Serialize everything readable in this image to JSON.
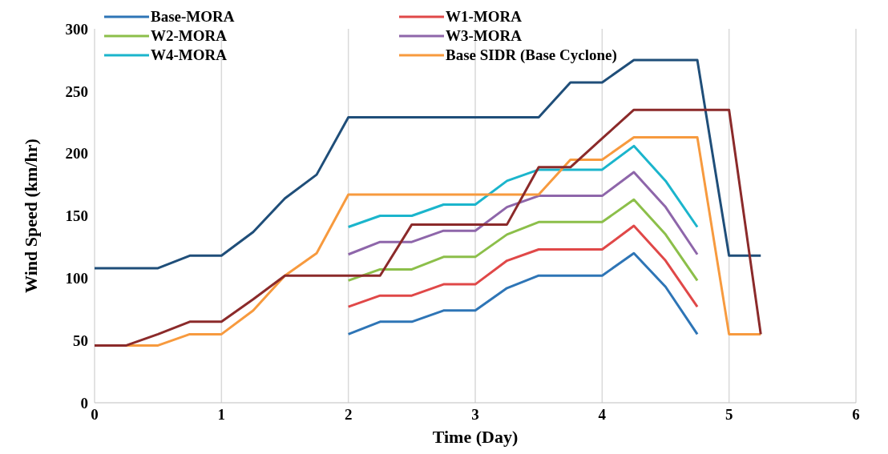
{
  "chart_data": {
    "type": "line",
    "xlabel": "Time (Day)",
    "ylabel": "Wind Speed (km/hr)",
    "xlim": [
      0,
      6
    ],
    "xticks": [
      0,
      1,
      2,
      3,
      4,
      5,
      6
    ],
    "ylim": [
      0,
      300
    ],
    "yticks": [
      0,
      50,
      100,
      150,
      200,
      250,
      300
    ],
    "grid": "x",
    "legend": "top",
    "marker": "none",
    "line_style": "solid",
    "series": [
      {
        "name": "Base-MORA",
        "color": "#2e75b6",
        "x": [
          2,
          2.25,
          2.5,
          2.75,
          3,
          3.25,
          3.5,
          4,
          4.25,
          4.5,
          4.75
        ],
        "values": [
          55,
          65,
          65,
          74,
          74,
          92,
          102,
          102,
          120,
          93,
          55
        ]
      },
      {
        "name": "W1-MORA",
        "color": "#e04848",
        "x": [
          2,
          2.25,
          2.5,
          2.75,
          3,
          3.25,
          3.5,
          4,
          4.25,
          4.5,
          4.75
        ],
        "values": [
          77,
          86,
          86,
          95,
          95,
          114,
          123,
          123,
          142,
          114,
          77
        ]
      },
      {
        "name": "W2-MORA",
        "color": "#8cbf4a",
        "x": [
          2,
          2.25,
          2.5,
          2.75,
          3,
          3.25,
          3.5,
          4,
          4.25,
          4.5,
          4.75
        ],
        "values": [
          98,
          107,
          107,
          117,
          117,
          135,
          145,
          145,
          163,
          135,
          98
        ]
      },
      {
        "name": "W3-MORA",
        "color": "#8e66aa",
        "x": [
          2,
          2.25,
          2.5,
          2.75,
          3,
          3.25,
          3.5,
          4,
          4.25,
          4.5,
          4.75
        ],
        "values": [
          119,
          129,
          129,
          138,
          138,
          157,
          166,
          166,
          185,
          157,
          119
        ]
      },
      {
        "name": "W4-MORA",
        "color": "#1bb5cc",
        "x": [
          2,
          2.25,
          2.5,
          2.75,
          3,
          3.25,
          3.5,
          4,
          4.25,
          4.5,
          4.75
        ],
        "values": [
          141,
          150,
          150,
          159,
          159,
          178,
          187,
          187,
          206,
          178,
          141
        ]
      },
      {
        "name": "Base SIDR (Base Cyclone)",
        "color": "#f79a3e",
        "x": [
          0,
          0.5,
          0.75,
          1,
          1.25,
          1.5,
          1.75,
          2,
          3.5,
          3.75,
          4,
          4.25,
          4.75,
          5,
          5.25
        ],
        "values": [
          46,
          46,
          55,
          55,
          74,
          102,
          120,
          167,
          167,
          195,
          195,
          213,
          213,
          55,
          55
        ]
      },
      {
        "color": "#1f4e79",
        "x": [
          0,
          0.25,
          0.5,
          0.75,
          1,
          1.25,
          1.5,
          1.75,
          2,
          3.5,
          3.75,
          4,
          4.25,
          4.75,
          5,
          5.25
        ],
        "values": [
          108,
          108,
          108,
          118,
          118,
          137,
          164,
          183,
          229,
          229,
          257,
          257,
          275,
          275,
          118,
          118
        ]
      },
      {
        "color": "#8b2a2a",
        "x": [
          0,
          0.25,
          0.5,
          0.75,
          1,
          1.25,
          1.5,
          2.25,
          2.5,
          3.25,
          3.5,
          3.75,
          4,
          4.25,
          5,
          5.25
        ],
        "values": [
          46,
          46,
          55,
          65,
          65,
          83,
          102,
          102,
          143,
          143,
          189,
          189,
          212,
          235,
          235,
          55
        ]
      }
    ]
  }
}
